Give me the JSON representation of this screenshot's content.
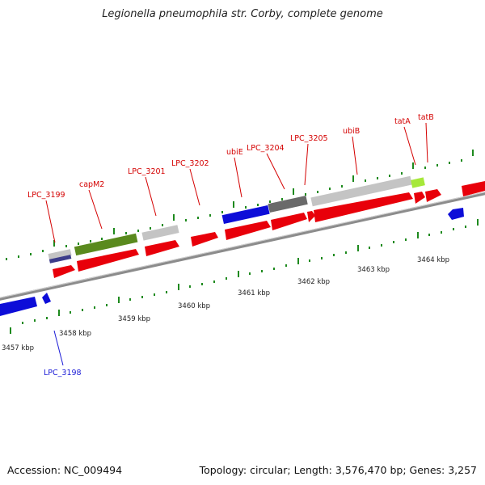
{
  "title": "Legionella pneumophila str. Corby, complete genome",
  "accession_text": "Accession: NC_009494",
  "topology_text": "Topology: circular; Length: 3,576,470 bp; Genes: 3,257",
  "colors": {
    "backbone": "#8c8c8c",
    "tick": "#1e8a1e",
    "red_gene": "#e8000a",
    "blue_gene": "#0d0dd8",
    "olive": "#5a8a1e",
    "light_gray": "#c4c4c4",
    "dark_gray": "#6a6a6a",
    "lime": "#a6e83a",
    "navy": "#3c3c8a",
    "label_red": "#d40000",
    "label_blue": "#1a1ad6"
  },
  "kbp_labels": [
    "3457 kbp",
    "3458 kbp",
    "3459 kbp",
    "3460 kbp",
    "3461 kbp",
    "3462 kbp",
    "3463 kbp",
    "3464 kbp"
  ],
  "gene_labels": [
    {
      "text": "LPC_3198",
      "color": "blue"
    },
    {
      "text": "LPC_3199",
      "color": "red"
    },
    {
      "text": "capM2",
      "color": "red"
    },
    {
      "text": "LPC_3201",
      "color": "red"
    },
    {
      "text": "LPC_3202",
      "color": "red"
    },
    {
      "text": "ubiE",
      "color": "red"
    },
    {
      "text": "LPC_3204",
      "color": "red"
    },
    {
      "text": "LPC_3205",
      "color": "red"
    },
    {
      "text": "ubiB",
      "color": "red"
    },
    {
      "text": "tatA",
      "color": "red"
    },
    {
      "text": "tatB",
      "color": "red"
    }
  ]
}
